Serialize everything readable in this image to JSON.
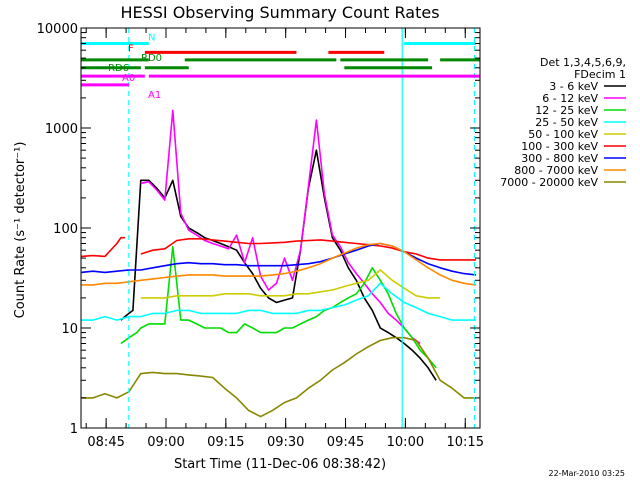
{
  "chart_data": {
    "type": "line",
    "title": "HESSI Observing Summary Count Rates",
    "xlabel": "Start Time (11-Dec-06 08:38:42)",
    "ylabel": "Count Rate (s⁻¹ detector⁻¹)",
    "x_axis": {
      "unit": "minutes after 08:38:42",
      "range": [
        0,
        100
      ],
      "ticks": [
        {
          "label": "08:45",
          "value": 6.3
        },
        {
          "label": "09:00",
          "value": 21.3
        },
        {
          "label": "09:15",
          "value": 36.3
        },
        {
          "label": "09:30",
          "value": 51.3
        },
        {
          "label": "09:45",
          "value": 66.3
        },
        {
          "label": "10:00",
          "value": 81.3
        },
        {
          "label": "10:15",
          "value": 96.3
        }
      ]
    },
    "y_axis": {
      "scale": "log",
      "range": [
        1,
        10000
      ],
      "ticks": [
        {
          "label": "1",
          "value": 1
        },
        {
          "label": "10",
          "value": 10
        },
        {
          "label": "100",
          "value": 100
        },
        {
          "label": "1000",
          "value": 1000
        },
        {
          "label": "10000",
          "value": 10000
        }
      ]
    },
    "legend": {
      "placement": "right",
      "heading": [
        "Det 1,3,4,5,6,9,",
        "FDecim 1"
      ]
    },
    "series": [
      {
        "name": "3 - 6 keV",
        "color": "#000000",
        "x": [
          0,
          2,
          4,
          6,
          8,
          9,
          10,
          11,
          12,
          13,
          15,
          17,
          19,
          21,
          23,
          25,
          27,
          29,
          31,
          33,
          35,
          37,
          39,
          41,
          43,
          45,
          47,
          49,
          51,
          53,
          55,
          57,
          59,
          61,
          63,
          65,
          67,
          69,
          71,
          73,
          75,
          77,
          79,
          81,
          83,
          85,
          87,
          89,
          91,
          93,
          95,
          97,
          100
        ],
        "y": [
          null,
          null,
          null,
          null,
          null,
          null,
          12,
          13,
          14,
          15,
          300,
          300,
          250,
          200,
          300,
          130,
          100,
          90,
          80,
          75,
          70,
          65,
          60,
          45,
          35,
          25,
          20,
          18,
          19,
          20,
          60,
          250,
          600,
          200,
          80,
          60,
          40,
          30,
          20,
          15,
          10,
          9,
          8,
          7,
          6,
          5,
          4,
          3,
          null,
          null,
          null,
          null,
          null
        ]
      },
      {
        "name": "6 - 12 keV",
        "color": "#ff00ff",
        "x": [
          15,
          17,
          19,
          21,
          23,
          25,
          27,
          29,
          31,
          33,
          35,
          37,
          39,
          41,
          43,
          45,
          47,
          49,
          51,
          53,
          55,
          57,
          59,
          61,
          63,
          65,
          67,
          69,
          71,
          73,
          75,
          77,
          79,
          81,
          83,
          85
        ],
        "y": [
          280,
          290,
          240,
          190,
          1500,
          140,
          95,
          85,
          75,
          70,
          66,
          62,
          85,
          45,
          80,
          33,
          24,
          28,
          50,
          30,
          60,
          260,
          1200,
          220,
          85,
          65,
          45,
          35,
          28,
          22,
          18,
          14,
          12,
          10,
          8,
          7
        ]
      },
      {
        "name": "12 - 25 keV",
        "color": "#00dd00",
        "x": [
          10,
          12,
          14,
          15,
          17,
          19,
          21,
          23,
          25,
          27,
          29,
          31,
          33,
          35,
          37,
          39,
          41,
          43,
          45,
          47,
          49,
          51,
          53,
          55,
          57,
          59,
          61,
          63,
          65,
          67,
          69,
          71,
          73,
          75,
          77,
          79,
          81,
          83,
          85,
          87,
          89
        ],
        "y": [
          7,
          8,
          9,
          10,
          11,
          11,
          11,
          65,
          12,
          12,
          11,
          10,
          10,
          10,
          9,
          9,
          11,
          10,
          9,
          9,
          9,
          10,
          10,
          11,
          12,
          13,
          15,
          16,
          18,
          20,
          22,
          28,
          40,
          30,
          22,
          14,
          10,
          8,
          6,
          5,
          4
        ]
      },
      {
        "name": "25 - 50 keV",
        "color": "#00ffff",
        "x": [
          0,
          3,
          6,
          9,
          12,
          15,
          18,
          21,
          24,
          27,
          30,
          33,
          36,
          39,
          42,
          45,
          48,
          51,
          54,
          57,
          60,
          63,
          66,
          69,
          72,
          75,
          78,
          81,
          84,
          87,
          90,
          93,
          96,
          99
        ],
        "y": [
          12,
          12,
          13,
          12,
          13,
          13,
          14,
          14,
          15,
          15,
          14,
          14,
          14,
          14,
          15,
          15,
          14,
          14,
          14,
          15,
          15,
          16,
          17,
          19,
          21,
          28,
          22,
          18,
          16,
          14,
          13,
          12,
          12,
          12
        ]
      },
      {
        "name": "50 - 100 keV",
        "color": "#cccc00",
        "x": [
          15,
          18,
          21,
          24,
          27,
          30,
          33,
          36,
          39,
          42,
          45,
          48,
          51,
          54,
          57,
          60,
          63,
          66,
          69,
          72,
          75,
          78,
          81,
          84,
          87,
          90
        ],
        "y": [
          20,
          20,
          20,
          21,
          21,
          21,
          21,
          22,
          22,
          22,
          21,
          21,
          21,
          22,
          22,
          23,
          24,
          26,
          28,
          30,
          38,
          30,
          25,
          21,
          20,
          20
        ]
      },
      {
        "name": "100 - 300 keV",
        "color": "#ff0000",
        "x": [
          0,
          3,
          6,
          9,
          10,
          11,
          12,
          15,
          18,
          21,
          24,
          27,
          30,
          33,
          36,
          39,
          42,
          45,
          48,
          51,
          54,
          57,
          60,
          63,
          66,
          69,
          72,
          75,
          78,
          81,
          84,
          87,
          90,
          93,
          96,
          99
        ],
        "y": [
          52,
          53,
          52,
          70,
          80,
          80,
          null,
          55,
          60,
          62,
          75,
          78,
          78,
          76,
          74,
          72,
          70,
          70,
          71,
          72,
          74,
          75,
          76,
          74,
          72,
          70,
          68,
          66,
          63,
          58,
          55,
          50,
          48,
          48,
          48,
          48
        ]
      },
      {
        "name": "300 - 800 keV",
        "color": "#0000ff",
        "x": [
          0,
          3,
          6,
          9,
          12,
          15,
          18,
          21,
          24,
          27,
          30,
          33,
          36,
          39,
          42,
          45,
          48,
          51,
          54,
          57,
          60,
          63,
          66,
          69,
          72,
          75,
          78,
          81,
          84,
          87,
          90,
          93,
          96,
          99
        ],
        "y": [
          36,
          37,
          36,
          37,
          38,
          38,
          40,
          42,
          44,
          45,
          44,
          44,
          43,
          43,
          42,
          42,
          42,
          42,
          43,
          44,
          46,
          50,
          55,
          60,
          66,
          70,
          66,
          58,
          50,
          44,
          40,
          37,
          35,
          34
        ]
      },
      {
        "name": "800 - 7000 keV",
        "color": "#ff8800",
        "x": [
          0,
          3,
          6,
          9,
          12,
          15,
          18,
          21,
          24,
          27,
          30,
          33,
          36,
          39,
          42,
          45,
          48,
          51,
          54,
          57,
          60,
          63,
          66,
          69,
          72,
          75,
          78,
          81,
          84,
          87,
          90,
          93,
          96,
          99
        ],
        "y": [
          27,
          27,
          28,
          28,
          29,
          30,
          31,
          32,
          33,
          34,
          34,
          34,
          33,
          33,
          33,
          33,
          34,
          35,
          37,
          40,
          44,
          50,
          56,
          63,
          68,
          70,
          66,
          58,
          48,
          40,
          34,
          30,
          28,
          27
        ]
      },
      {
        "name": "7000 - 20000 keV",
        "color": "#888800",
        "x": [
          0,
          3,
          6,
          9,
          12,
          15,
          18,
          21,
          24,
          27,
          30,
          33,
          36,
          39,
          42,
          45,
          48,
          51,
          54,
          57,
          60,
          63,
          66,
          69,
          72,
          75,
          78,
          81,
          84,
          87,
          90,
          93,
          96,
          99
        ],
        "y": [
          2,
          2,
          2.2,
          2,
          2.3,
          3.5,
          3.6,
          3.5,
          3.5,
          3.4,
          3.3,
          3.2,
          2.5,
          2.0,
          1.5,
          1.3,
          1.5,
          1.8,
          2.0,
          2.5,
          3.0,
          3.8,
          4.5,
          5.5,
          6.5,
          7.5,
          8,
          8,
          7.5,
          5,
          3,
          2.5,
          2,
          2
        ]
      }
    ],
    "flags": [
      {
        "label": "N",
        "color": "#00ffff",
        "level": 7000,
        "segments": [
          [
            0,
            17
          ],
          [
            81,
            99
          ]
        ]
      },
      {
        "label": "F",
        "color": "#ff0000",
        "level": 5700,
        "segments": [
          [
            16,
            54
          ],
          [
            62,
            76
          ]
        ]
      },
      {
        "label": "RD0",
        "color": "#008800",
        "level": 4800,
        "segments": [
          [
            0,
            17
          ],
          [
            26,
            64
          ],
          [
            65,
            87
          ],
          [
            90,
            100
          ]
        ]
      },
      {
        "label": "RD6",
        "color": "#008800",
        "level": 4000,
        "segments": [
          [
            0,
            15
          ],
          [
            16,
            27
          ],
          [
            66,
            88
          ]
        ]
      },
      {
        "label": "A0",
        "color": "#ff00ff",
        "level": 3300,
        "segments": [
          [
            0,
            16
          ],
          [
            17,
            100
          ]
        ]
      },
      {
        "label": "A1",
        "color": "#ff00ff",
        "level": 2700,
        "segments": [
          [
            0,
            12
          ]
        ]
      }
    ],
    "markers": [
      {
        "value": 0,
        "color": "#00ffff",
        "style": "solid"
      },
      {
        "value": 12,
        "color": "#00ffff",
        "style": "dashed"
      },
      {
        "value": 80.5,
        "color": "#00ffff",
        "style": "solid"
      },
      {
        "value": 98.6,
        "color": "#00ffff",
        "style": "dashed"
      }
    ]
  },
  "footer": {
    "timestamp": "22-Mar-2010 03:25"
  }
}
